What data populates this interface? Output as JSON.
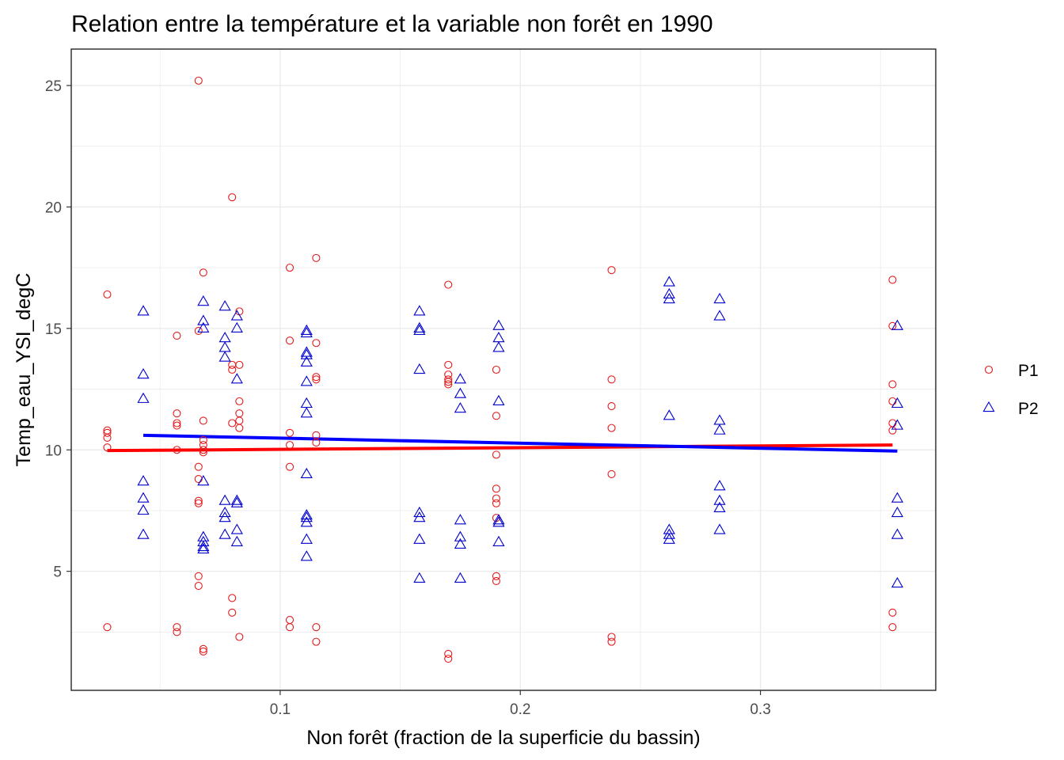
{
  "chart_data": {
    "type": "scatter",
    "title": "Relation entre la température et la variable non forêt en 1990",
    "xlabel": "Non forêt (fraction de la superficie du bassin)",
    "ylabel": "Temp_eau_YSI_degC",
    "xlim": [
      0.013,
      0.373
    ],
    "ylim": [
      0.1,
      26.5
    ],
    "x_ticks": [
      "0.1",
      "0.2",
      "0.3"
    ],
    "y_ticks": [
      "5",
      "10",
      "15",
      "20",
      "25"
    ],
    "grid": true,
    "legend_position": "right",
    "series": [
      {
        "name": "P1",
        "marker": "circle",
        "color": "#e41a1c",
        "fit_color": "#ff0000",
        "fit_line": [
          [
            0.028,
            9.97
          ],
          [
            0.355,
            10.2
          ]
        ],
        "points": [
          [
            0.028,
            16.4
          ],
          [
            0.028,
            10.8
          ],
          [
            0.028,
            10.7
          ],
          [
            0.028,
            10.5
          ],
          [
            0.028,
            10.1
          ],
          [
            0.028,
            2.7
          ],
          [
            0.057,
            14.7
          ],
          [
            0.057,
            11.5
          ],
          [
            0.057,
            11.1
          ],
          [
            0.057,
            11.0
          ],
          [
            0.057,
            10.0
          ],
          [
            0.057,
            2.7
          ],
          [
            0.057,
            2.5
          ],
          [
            0.066,
            25.2
          ],
          [
            0.066,
            14.9
          ],
          [
            0.066,
            9.3
          ],
          [
            0.066,
            8.8
          ],
          [
            0.066,
            7.9
          ],
          [
            0.066,
            7.8
          ],
          [
            0.066,
            4.8
          ],
          [
            0.066,
            4.4
          ],
          [
            0.068,
            17.3
          ],
          [
            0.068,
            11.2
          ],
          [
            0.068,
            10.4
          ],
          [
            0.068,
            10.2
          ],
          [
            0.068,
            10.0
          ],
          [
            0.068,
            9.9
          ],
          [
            0.068,
            1.8
          ],
          [
            0.068,
            1.7
          ],
          [
            0.08,
            20.4
          ],
          [
            0.08,
            13.5
          ],
          [
            0.08,
            13.3
          ],
          [
            0.08,
            11.1
          ],
          [
            0.08,
            3.9
          ],
          [
            0.08,
            3.3
          ],
          [
            0.083,
            15.7
          ],
          [
            0.083,
            13.5
          ],
          [
            0.083,
            12.0
          ],
          [
            0.083,
            11.5
          ],
          [
            0.083,
            11.2
          ],
          [
            0.083,
            10.9
          ],
          [
            0.083,
            2.3
          ],
          [
            0.104,
            17.5
          ],
          [
            0.104,
            14.5
          ],
          [
            0.104,
            10.7
          ],
          [
            0.104,
            10.2
          ],
          [
            0.104,
            9.3
          ],
          [
            0.104,
            3.0
          ],
          [
            0.104,
            2.7
          ],
          [
            0.115,
            17.9
          ],
          [
            0.115,
            14.4
          ],
          [
            0.115,
            13.0
          ],
          [
            0.115,
            12.9
          ],
          [
            0.115,
            10.6
          ],
          [
            0.115,
            10.3
          ],
          [
            0.115,
            2.7
          ],
          [
            0.115,
            2.1
          ],
          [
            0.17,
            16.8
          ],
          [
            0.17,
            13.5
          ],
          [
            0.17,
            13.1
          ],
          [
            0.17,
            12.9
          ],
          [
            0.17,
            12.8
          ],
          [
            0.17,
            12.7
          ],
          [
            0.17,
            1.6
          ],
          [
            0.17,
            1.4
          ],
          [
            0.19,
            13.3
          ],
          [
            0.19,
            11.4
          ],
          [
            0.19,
            9.8
          ],
          [
            0.19,
            8.4
          ],
          [
            0.19,
            8.0
          ],
          [
            0.19,
            7.8
          ],
          [
            0.19,
            7.2
          ],
          [
            0.19,
            4.8
          ],
          [
            0.19,
            4.6
          ],
          [
            0.238,
            17.4
          ],
          [
            0.238,
            12.9
          ],
          [
            0.238,
            11.8
          ],
          [
            0.238,
            10.9
          ],
          [
            0.238,
            9.0
          ],
          [
            0.238,
            2.3
          ],
          [
            0.238,
            2.1
          ],
          [
            0.355,
            17.0
          ],
          [
            0.355,
            15.1
          ],
          [
            0.355,
            12.7
          ],
          [
            0.355,
            12.0
          ],
          [
            0.355,
            11.1
          ],
          [
            0.355,
            10.8
          ],
          [
            0.355,
            3.3
          ],
          [
            0.355,
            2.7
          ]
        ]
      },
      {
        "name": "P2",
        "marker": "triangle",
        "color": "#0000cc",
        "fit_color": "#0000ff",
        "fit_line": [
          [
            0.043,
            10.6
          ],
          [
            0.357,
            9.95
          ]
        ],
        "points": [
          [
            0.043,
            15.7
          ],
          [
            0.043,
            13.1
          ],
          [
            0.043,
            12.1
          ],
          [
            0.043,
            8.7
          ],
          [
            0.043,
            8.0
          ],
          [
            0.043,
            7.5
          ],
          [
            0.043,
            6.5
          ],
          [
            0.068,
            16.1
          ],
          [
            0.068,
            15.3
          ],
          [
            0.068,
            15.0
          ],
          [
            0.068,
            8.7
          ],
          [
            0.068,
            6.4
          ],
          [
            0.068,
            6.2
          ],
          [
            0.068,
            6.0
          ],
          [
            0.068,
            5.9
          ],
          [
            0.077,
            15.9
          ],
          [
            0.077,
            14.6
          ],
          [
            0.077,
            14.2
          ],
          [
            0.077,
            13.8
          ],
          [
            0.077,
            7.9
          ],
          [
            0.077,
            7.4
          ],
          [
            0.077,
            7.2
          ],
          [
            0.077,
            6.5
          ],
          [
            0.082,
            15.5
          ],
          [
            0.082,
            15.0
          ],
          [
            0.082,
            12.9
          ],
          [
            0.082,
            7.9
          ],
          [
            0.082,
            7.8
          ],
          [
            0.082,
            6.7
          ],
          [
            0.082,
            6.2
          ],
          [
            0.111,
            14.9
          ],
          [
            0.111,
            14.8
          ],
          [
            0.111,
            14.0
          ],
          [
            0.111,
            13.9
          ],
          [
            0.111,
            13.6
          ],
          [
            0.111,
            12.8
          ],
          [
            0.111,
            11.9
          ],
          [
            0.111,
            11.5
          ],
          [
            0.111,
            9.0
          ],
          [
            0.111,
            7.3
          ],
          [
            0.111,
            7.2
          ],
          [
            0.111,
            7.0
          ],
          [
            0.111,
            6.3
          ],
          [
            0.111,
            5.6
          ],
          [
            0.158,
            15.7
          ],
          [
            0.158,
            15.0
          ],
          [
            0.158,
            14.9
          ],
          [
            0.158,
            13.3
          ],
          [
            0.158,
            7.4
          ],
          [
            0.158,
            7.2
          ],
          [
            0.158,
            6.3
          ],
          [
            0.158,
            4.7
          ],
          [
            0.175,
            12.9
          ],
          [
            0.175,
            12.3
          ],
          [
            0.175,
            11.7
          ],
          [
            0.175,
            7.1
          ],
          [
            0.175,
            6.4
          ],
          [
            0.175,
            6.1
          ],
          [
            0.175,
            4.7
          ],
          [
            0.191,
            15.1
          ],
          [
            0.191,
            14.6
          ],
          [
            0.191,
            14.2
          ],
          [
            0.191,
            12.0
          ],
          [
            0.191,
            7.1
          ],
          [
            0.191,
            7.0
          ],
          [
            0.191,
            6.2
          ],
          [
            0.262,
            16.9
          ],
          [
            0.262,
            16.4
          ],
          [
            0.262,
            16.2
          ],
          [
            0.262,
            11.4
          ],
          [
            0.262,
            6.7
          ],
          [
            0.262,
            6.5
          ],
          [
            0.262,
            6.3
          ],
          [
            0.283,
            16.2
          ],
          [
            0.283,
            15.5
          ],
          [
            0.283,
            11.2
          ],
          [
            0.283,
            10.8
          ],
          [
            0.283,
            8.5
          ],
          [
            0.283,
            7.9
          ],
          [
            0.283,
            7.6
          ],
          [
            0.283,
            6.7
          ],
          [
            0.357,
            15.1
          ],
          [
            0.357,
            11.9
          ],
          [
            0.357,
            11.0
          ],
          [
            0.357,
            8.0
          ],
          [
            0.357,
            7.4
          ],
          [
            0.357,
            6.5
          ],
          [
            0.357,
            4.5
          ]
        ]
      }
    ]
  }
}
